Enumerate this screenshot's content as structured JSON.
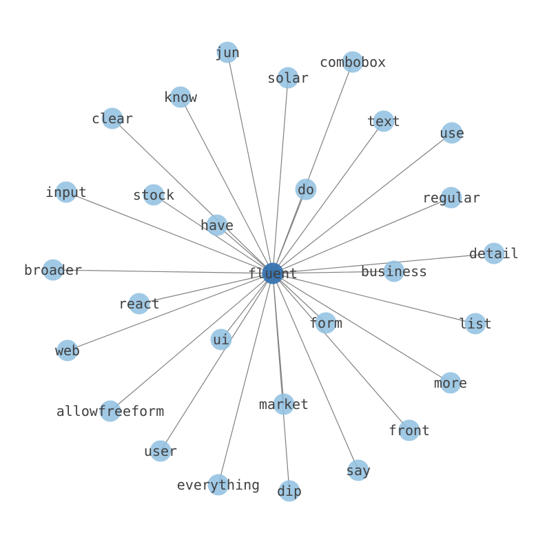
{
  "graph": {
    "center": "fluent",
    "nodes": [
      "jun",
      "solar",
      "combobox",
      "know",
      "clear",
      "text",
      "use",
      "do",
      "input",
      "stock",
      "regular",
      "have",
      "broader",
      "business",
      "detail",
      "react",
      "list",
      "form",
      "ui",
      "web",
      "more",
      "market",
      "allowfreeform",
      "front",
      "user",
      "say",
      "everything",
      "dip"
    ],
    "colors": {
      "center_node": "#2f6fb0",
      "node": "#8fc0e0",
      "edge": "#808080",
      "label": "#404040"
    }
  }
}
